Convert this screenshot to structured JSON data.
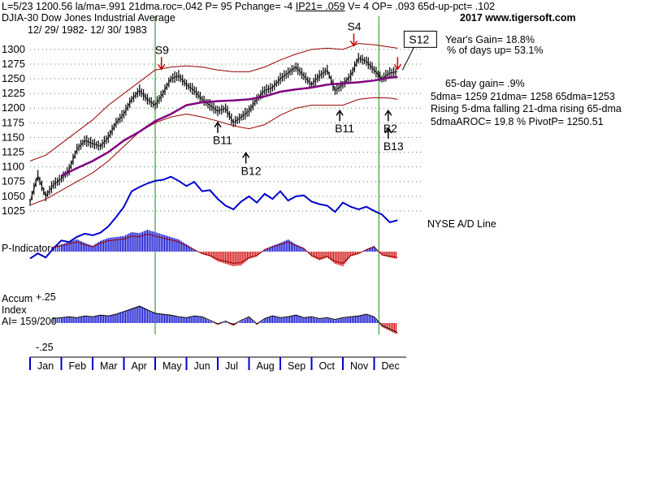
{
  "header": {
    "line1_prefix": "L=5/23  1200.56  la/ma=.991 21dma.roc=.042 P=  95 Pchange= -4",
    "line1_ip": "IP21= .059",
    "line1_suffix": "V= 4 OP= .093 65d-up-pct= .102",
    "title": "DJIA-30  Dow Jones Industrial Average",
    "date_range": "12/ 29/ 1982- 12/ 30/ 1983",
    "copyright": "2017 www.tigersoft.com"
  },
  "stats": {
    "years_gain": "Year's Gain= 18.8%",
    "pct_days_up": "% of days up= 53.1%",
    "gain65": "65-day gain= .9%",
    "dmas": "5dma= 1259 21dma= 1258 65dma=1253",
    "trend": "Rising 5-dma falling 21-dma rising 65-dma",
    "aroc": "5dmaAROC= 19.8 %  PivotP= 1250.51"
  },
  "panel_labels": {
    "nyse_ad": "NYSE A/D Line",
    "p_indicator": "P-Indicator",
    "accum_1": "Accum",
    "accum_2": "Index",
    "ai": "AI= 159/200",
    "plus25": "+.25",
    "minus25": "-.25"
  },
  "signals": [
    {
      "label": "S9",
      "kind": "sell",
      "month": 4.2,
      "price": 1262
    },
    {
      "label": "S4",
      "kind": "sell",
      "month": 10.35,
      "price": 1302
    },
    {
      "label": "S12",
      "kind": "sell",
      "month": 11.75,
      "price": 1262,
      "boxed": true
    },
    {
      "label": "B11",
      "kind": "buy",
      "month": 6.0,
      "price": 1180
    },
    {
      "label": "B12",
      "kind": "buy",
      "month": 6.9,
      "price": 1128
    },
    {
      "label": "B11",
      "kind": "buy",
      "month": 9.9,
      "price": 1200
    },
    {
      "label": "B2",
      "kind": "buy",
      "month": 11.45,
      "price": 1200
    },
    {
      "label": "B13",
      "kind": "buy",
      "month": 11.45,
      "price": 1170
    }
  ],
  "chart_data": {
    "type": "line",
    "title": "DJIA-30 Dow Jones Industrial Average",
    "xlabel": "",
    "ylabel": "",
    "categories": [
      "Jan",
      "Feb",
      "Mar",
      "Apr",
      "May",
      "Jun",
      "Jul",
      "Aug",
      "Sep",
      "Oct",
      "Nov",
      "Dec"
    ],
    "y_ticks": [
      1300,
      1275,
      1250,
      1225,
      1200,
      1175,
      1150,
      1125,
      1100,
      1075,
      1050,
      1025
    ],
    "ylim": [
      1018,
      1315
    ],
    "grid": true,
    "vertical_markers_month": [
      4.0,
      11.15
    ],
    "series": [
      {
        "name": "DJIA",
        "color": "#000000",
        "x": [
          0,
          0.25,
          0.5,
          0.75,
          1,
          1.25,
          1.5,
          1.75,
          2,
          2.25,
          2.5,
          2.75,
          3,
          3.25,
          3.5,
          3.75,
          4,
          4.25,
          4.5,
          4.75,
          5,
          5.25,
          5.5,
          5.75,
          6,
          6.25,
          6.5,
          6.75,
          7,
          7.25,
          7.5,
          7.75,
          8,
          8.25,
          8.5,
          8.75,
          9,
          9.25,
          9.5,
          9.75,
          10,
          10.25,
          10.5,
          10.75,
          11,
          11.25,
          11.5,
          11.75
        ],
        "values": [
          1040,
          1085,
          1050,
          1070,
          1080,
          1095,
          1130,
          1145,
          1140,
          1135,
          1150,
          1175,
          1190,
          1215,
          1230,
          1215,
          1205,
          1225,
          1250,
          1255,
          1240,
          1230,
          1215,
          1205,
          1195,
          1200,
          1175,
          1185,
          1195,
          1215,
          1230,
          1235,
          1250,
          1260,
          1270,
          1255,
          1240,
          1255,
          1265,
          1230,
          1240,
          1255,
          1285,
          1280,
          1265,
          1250,
          1260,
          1262
        ]
      },
      {
        "name": "65-dma",
        "color": "#800080",
        "x": [
          1,
          1.5,
          2,
          2.5,
          3,
          3.5,
          4,
          4.5,
          5,
          5.5,
          6,
          6.5,
          7,
          7.5,
          8,
          8.5,
          9,
          9.5,
          10,
          10.5,
          11,
          11.5,
          11.75
        ],
        "values": [
          1085,
          1098,
          1110,
          1125,
          1145,
          1160,
          1178,
          1190,
          1205,
          1210,
          1212,
          1213,
          1215,
          1220,
          1228,
          1232,
          1235,
          1240,
          1242,
          1244,
          1247,
          1252,
          1253
        ]
      },
      {
        "name": "Upper band",
        "color": "#990000",
        "x": [
          0,
          0.5,
          1,
          1.5,
          2,
          2.5,
          3,
          3.5,
          4,
          4.5,
          5,
          5.5,
          6,
          6.5,
          7,
          7.5,
          8,
          8.5,
          9,
          9.5,
          10,
          10.5,
          11,
          11.5,
          11.75
        ],
        "values": [
          1110,
          1120,
          1140,
          1160,
          1180,
          1205,
          1225,
          1245,
          1265,
          1270,
          1272,
          1270,
          1265,
          1262,
          1262,
          1270,
          1282,
          1292,
          1300,
          1302,
          1300,
          1310,
          1308,
          1304,
          1302
        ]
      },
      {
        "name": "Lower band",
        "color": "#990000",
        "x": [
          0,
          0.5,
          1,
          1.5,
          2,
          2.5,
          3,
          3.5,
          4,
          4.5,
          5,
          5.5,
          6,
          6.5,
          7,
          7.5,
          8,
          8.5,
          9,
          9.5,
          10,
          10.5,
          11,
          11.5,
          11.75
        ],
        "values": [
          1035,
          1045,
          1060,
          1075,
          1090,
          1110,
          1135,
          1160,
          1175,
          1185,
          1190,
          1185,
          1178,
          1170,
          1165,
          1172,
          1188,
          1200,
          1205,
          1205,
          1205,
          1215,
          1218,
          1217,
          1215
        ]
      },
      {
        "name": "NYSE A/D Line",
        "color": "#0000cc",
        "axis": "ad_panel",
        "x": [
          0,
          0.25,
          0.5,
          0.75,
          1,
          1.25,
          1.5,
          1.75,
          2,
          2.25,
          2.5,
          2.75,
          3,
          3.25,
          3.5,
          3.75,
          4,
          4.25,
          4.5,
          4.75,
          5,
          5.25,
          5.5,
          5.75,
          6,
          6.25,
          6.5,
          6.75,
          7,
          7.25,
          7.5,
          7.75,
          8,
          8.25,
          8.5,
          8.75,
          9,
          9.25,
          9.5,
          9.75,
          10,
          10.25,
          10.5,
          10.75,
          11,
          11.25,
          11.5,
          11.75
        ],
        "values": [
          10,
          20,
          12,
          30,
          45,
          42,
          52,
          58,
          55,
          60,
          72,
          90,
          110,
          140,
          148,
          155,
          160,
          162,
          168,
          160,
          150,
          158,
          140,
          142,
          125,
          112,
          105,
          120,
          130,
          118,
          135,
          125,
          140,
          122,
          130,
          132,
          120,
          115,
          112,
          100,
          118,
          110,
          105,
          110,
          102,
          95,
          80,
          84
        ]
      },
      {
        "name": "P-Indicator",
        "color": "#0000cc",
        "axis": "p_panel",
        "note": "positive blue / negative red histogram",
        "x": [
          0.7,
          1,
          1.25,
          1.5,
          1.75,
          2,
          2.25,
          2.5,
          2.75,
          3,
          3.25,
          3.5,
          3.75,
          4,
          4.25,
          4.5,
          4.75,
          5,
          5.25,
          5.5,
          5.75,
          6,
          6.25,
          6.5,
          6.75,
          7,
          7.25,
          7.5,
          7.75,
          8,
          8.25,
          8.5,
          8.75,
          9,
          9.25,
          9.5,
          9.75,
          10,
          10.25,
          10.5,
          10.75,
          11,
          11.25,
          11.5,
          11.75
        ],
        "values": [
          10,
          15,
          20,
          25,
          18,
          12,
          22,
          28,
          30,
          32,
          40,
          38,
          45,
          40,
          35,
          30,
          25,
          15,
          5,
          -5,
          -10,
          -20,
          -25,
          -30,
          -28,
          -15,
          -10,
          5,
          12,
          18,
          25,
          15,
          8,
          -10,
          -18,
          -12,
          -25,
          -30,
          -10,
          -5,
          5,
          12,
          -8,
          -12,
          -15
        ]
      },
      {
        "name": "Accumulation Index",
        "color": "#0000cc",
        "axis": "accum_panel",
        "note": "histogram",
        "x": [
          0.7,
          1,
          1.25,
          1.5,
          1.75,
          2,
          2.25,
          2.5,
          2.75,
          3,
          3.25,
          3.5,
          3.75,
          4,
          4.25,
          4.5,
          4.75,
          5,
          5.25,
          5.5,
          5.75,
          6,
          6.25,
          6.5,
          6.75,
          7,
          7.25,
          7.5,
          7.75,
          8,
          8.25,
          8.5,
          8.75,
          9,
          9.25,
          9.5,
          9.75,
          10,
          10.25,
          10.5,
          10.75,
          11,
          11.25,
          11.5,
          11.75
        ],
        "values": [
          0.04,
          0.05,
          0.06,
          0.05,
          0.07,
          0.06,
          0.08,
          0.07,
          0.09,
          0.12,
          0.15,
          0.18,
          0.14,
          0.1,
          0.09,
          0.08,
          0.06,
          0.05,
          0.07,
          0.06,
          0.02,
          -0.02,
          0.01,
          -0.03,
          0.02,
          0.06,
          -0.02,
          0.04,
          0.07,
          0.05,
          0.06,
          0.08,
          0.05,
          0.06,
          0.04,
          0.05,
          0.03,
          0.05,
          0.06,
          0.07,
          0.09,
          0.06,
          -0.04,
          -0.08,
          -0.12
        ]
      }
    ]
  }
}
